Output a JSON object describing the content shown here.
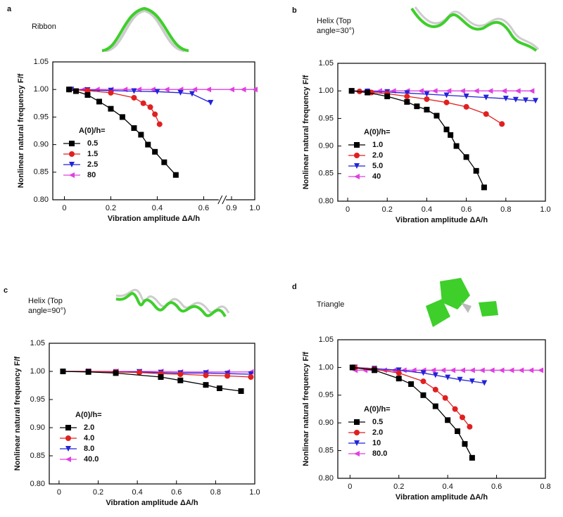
{
  "chart_data": [
    {
      "type": "line",
      "panel": "a",
      "subtitle": [
        "Ribbon"
      ],
      "xlabel": "Vibration amplitude ΔA/h",
      "ylabel": "Nonlinear natural frequency F/f",
      "legend_title": "A(0)/h=",
      "legend": "lower left",
      "xlim": [
        -0.05,
        1.0
      ],
      "xbreak": [
        0.68,
        0.86
      ],
      "xticks": [
        0,
        0.2,
        0.4,
        0.6,
        0.9,
        {
          "value": 1.0,
          "label": "1.0"
        }
      ],
      "ylim": [
        0.8,
        1.05
      ],
      "yticks": [
        {
          "value": 0.8,
          "label": "0.80"
        },
        0.85,
        {
          "value": 0.9,
          "label": "0.90"
        },
        0.95,
        {
          "value": 1.0,
          "label": "1.00"
        },
        1.05
      ],
      "series": [
        {
          "name": "80",
          "color": "#e040e0",
          "marker": "triangle-left",
          "x": [
            0.02,
            0.08,
            0.14,
            0.2,
            0.26,
            0.32,
            0.38,
            0.44,
            0.5,
            0.56,
            0.62,
            0.9,
            0.95,
            1.0
          ],
          "values": [
            1.0,
            1.0,
            1.0,
            1.0,
            1.0,
            1.0,
            1.0,
            1.0,
            1.0,
            1.0,
            1.0,
            1.0,
            1.0,
            1.0
          ]
        },
        {
          "name": "2.5",
          "color": "#2323d8",
          "marker": "triangle-down",
          "x": [
            0.03,
            0.1,
            0.2,
            0.3,
            0.4,
            0.5,
            0.55,
            0.63
          ],
          "values": [
            1.0,
            0.999,
            0.998,
            0.997,
            0.996,
            0.994,
            0.992,
            0.976
          ]
        },
        {
          "name": "1.5",
          "color": "#e02020",
          "marker": "circle",
          "x": [
            0.02,
            0.1,
            0.2,
            0.3,
            0.34,
            0.37,
            0.39,
            0.41
          ],
          "values": [
            1.0,
            0.998,
            0.994,
            0.985,
            0.975,
            0.968,
            0.955,
            0.937
          ]
        },
        {
          "name": "0.5",
          "color": "#000000",
          "marker": "square",
          "x": [
            0.02,
            0.05,
            0.1,
            0.15,
            0.2,
            0.25,
            0.3,
            0.33,
            0.36,
            0.39,
            0.43,
            0.48
          ],
          "values": [
            1.0,
            0.997,
            0.99,
            0.978,
            0.965,
            0.95,
            0.93,
            0.918,
            0.9,
            0.887,
            0.868,
            0.845
          ]
        }
      ]
    },
    {
      "type": "line",
      "panel": "b",
      "subtitle": [
        "Helix (Top",
        "angle=30°)"
      ],
      "xlabel": "Vibration amplitude ΔA/h",
      "ylabel": "Nonlinear natural frequency F/f",
      "legend_title": "A(0)/h=",
      "legend": "lower left",
      "xlim": [
        -0.05,
        1.0
      ],
      "xticks": [
        0,
        0.2,
        0.4,
        0.6,
        0.8,
        {
          "value": 1.0,
          "label": "1.0"
        }
      ],
      "ylim": [
        0.8,
        1.05
      ],
      "yticks": [
        {
          "value": 0.8,
          "label": "0.80"
        },
        0.85,
        {
          "value": 0.9,
          "label": "0.90"
        },
        0.95,
        {
          "value": 1.0,
          "label": "1.00"
        },
        1.05
      ],
      "series": [
        {
          "name": "40",
          "color": "#e040e0",
          "marker": "triangle-left",
          "x": [
            0.02,
            0.09,
            0.16,
            0.23,
            0.3,
            0.37,
            0.44,
            0.51,
            0.58,
            0.65,
            0.72,
            0.79,
            0.86,
            0.93
          ],
          "values": [
            1.0,
            1.0,
            1.0,
            1.0,
            1.0,
            1.0,
            1.0,
            1.0,
            1.0,
            1.0,
            1.0,
            1.0,
            1.0,
            1.0
          ]
        },
        {
          "name": "5.0",
          "color": "#2323d8",
          "marker": "triangle-down",
          "x": [
            0.02,
            0.1,
            0.2,
            0.3,
            0.4,
            0.5,
            0.6,
            0.7,
            0.8,
            0.85,
            0.9,
            0.95
          ],
          "values": [
            1.0,
            0.999,
            0.998,
            0.996,
            0.994,
            0.992,
            0.99,
            0.988,
            0.986,
            0.984,
            0.983,
            0.982
          ]
        },
        {
          "name": "2.0",
          "color": "#e02020",
          "marker": "circle",
          "x": [
            0.02,
            0.06,
            0.12,
            0.2,
            0.3,
            0.4,
            0.5,
            0.6,
            0.7,
            0.78
          ],
          "values": [
            1.0,
            0.999,
            0.997,
            0.995,
            0.99,
            0.985,
            0.979,
            0.971,
            0.958,
            0.94
          ]
        },
        {
          "name": "1.0",
          "color": "#000000",
          "marker": "square",
          "x": [
            0.02,
            0.1,
            0.2,
            0.3,
            0.35,
            0.4,
            0.45,
            0.5,
            0.52,
            0.55,
            0.6,
            0.65,
            0.69
          ],
          "values": [
            1.0,
            0.997,
            0.99,
            0.98,
            0.972,
            0.966,
            0.955,
            0.93,
            0.92,
            0.9,
            0.88,
            0.855,
            0.825
          ]
        }
      ]
    },
    {
      "type": "line",
      "panel": "c",
      "subtitle": [
        "Helix (Top",
        "angle=90°)"
      ],
      "xlabel": "Vibration amplitude ΔA/h",
      "ylabel": "Nonlinear natural frequency F/f",
      "legend_title": "A(0)/h=",
      "legend": "lower left",
      "xlim": [
        -0.05,
        1.0
      ],
      "xticks": [
        0,
        0.2,
        0.4,
        0.6,
        0.8,
        {
          "value": 1.0,
          "label": "1.0"
        }
      ],
      "ylim": [
        0.8,
        1.05
      ],
      "yticks": [
        {
          "value": 0.8,
          "label": "0.80"
        },
        0.85,
        {
          "value": 0.9,
          "label": "0.90"
        },
        0.95,
        {
          "value": 1.0,
          "label": "1.00"
        },
        1.05
      ],
      "series": [
        {
          "name": "40.0",
          "color": "#e040e0",
          "marker": "triangle-left",
          "x": [
            0.02,
            0.15,
            0.29,
            0.41,
            0.52,
            0.62,
            0.75,
            0.86,
            0.98
          ],
          "values": [
            1.0,
            1.0,
            1.0,
            1.0,
            1.0,
            0.999,
            0.999,
            0.999,
            0.999
          ]
        },
        {
          "name": "8.0",
          "color": "#2323d8",
          "marker": "triangle-down",
          "x": [
            0.02,
            0.15,
            0.29,
            0.41,
            0.52,
            0.62,
            0.75,
            0.86,
            0.98
          ],
          "values": [
            1.0,
            1.0,
            0.999,
            0.999,
            0.998,
            0.997,
            0.997,
            0.996,
            0.995
          ]
        },
        {
          "name": "4.0",
          "color": "#e02020",
          "marker": "circle",
          "x": [
            0.02,
            0.15,
            0.29,
            0.41,
            0.52,
            0.62,
            0.75,
            0.86,
            0.98
          ],
          "values": [
            1.0,
            1.0,
            0.999,
            0.998,
            0.996,
            0.995,
            0.993,
            0.992,
            0.99
          ]
        },
        {
          "name": "2.0",
          "color": "#000000",
          "marker": "square",
          "x": [
            0.02,
            0.15,
            0.29,
            0.52,
            0.62,
            0.75,
            0.82,
            0.93
          ],
          "values": [
            1.0,
            0.999,
            0.997,
            0.99,
            0.984,
            0.976,
            0.97,
            0.965
          ]
        }
      ]
    },
    {
      "type": "line",
      "panel": "d",
      "subtitle": [
        "Triangle"
      ],
      "xlabel": "Vibration amplitude ΔA/h",
      "ylabel": "Nonlinear natural frequency F/f",
      "legend_title": "A(0)/h=",
      "legend": "lower left",
      "xlim": [
        -0.05,
        0.8
      ],
      "xticks": [
        0,
        0.2,
        0.4,
        0.6,
        0.8
      ],
      "ylim": [
        0.8,
        1.05
      ],
      "yticks": [
        {
          "value": 0.8,
          "label": "0.80"
        },
        0.85,
        {
          "value": 0.9,
          "label": "0.90"
        },
        0.95,
        {
          "value": 1.0,
          "label": "1.00"
        },
        1.05
      ],
      "series": [
        {
          "name": "80.0",
          "color": "#e040e0",
          "marker": "triangle-left",
          "x": [
            0.02,
            0.06,
            0.1,
            0.14,
            0.18,
            0.22,
            0.26,
            0.3,
            0.34,
            0.38,
            0.42,
            0.46,
            0.5,
            0.54,
            0.58,
            0.62,
            0.66,
            0.7,
            0.74,
            0.78
          ],
          "values": [
            0.995,
            0.995,
            0.995,
            0.995,
            0.995,
            0.995,
            0.995,
            0.995,
            0.995,
            0.995,
            0.995,
            0.995,
            0.995,
            0.995,
            0.995,
            0.995,
            0.995,
            0.995,
            0.995,
            0.995
          ]
        },
        {
          "name": "10",
          "color": "#2323d8",
          "marker": "triangle-down",
          "x": [
            0.02,
            0.1,
            0.2,
            0.3,
            0.35,
            0.4,
            0.45,
            0.5,
            0.55
          ],
          "values": [
            1.0,
            0.998,
            0.995,
            0.99,
            0.986,
            0.982,
            0.978,
            0.975,
            0.972
          ]
        },
        {
          "name": "2.0",
          "color": "#e02020",
          "marker": "circle",
          "x": [
            0.02,
            0.1,
            0.2,
            0.3,
            0.35,
            0.39,
            0.43,
            0.46,
            0.49
          ],
          "values": [
            1.0,
            0.997,
            0.99,
            0.975,
            0.96,
            0.945,
            0.925,
            0.91,
            0.893
          ]
        },
        {
          "name": "0.5",
          "color": "#000000",
          "marker": "square",
          "x": [
            0.01,
            0.1,
            0.2,
            0.25,
            0.3,
            0.35,
            0.4,
            0.44,
            0.47,
            0.5
          ],
          "values": [
            1.0,
            0.995,
            0.98,
            0.97,
            0.95,
            0.93,
            0.905,
            0.885,
            0.862,
            0.837
          ]
        }
      ]
    }
  ]
}
